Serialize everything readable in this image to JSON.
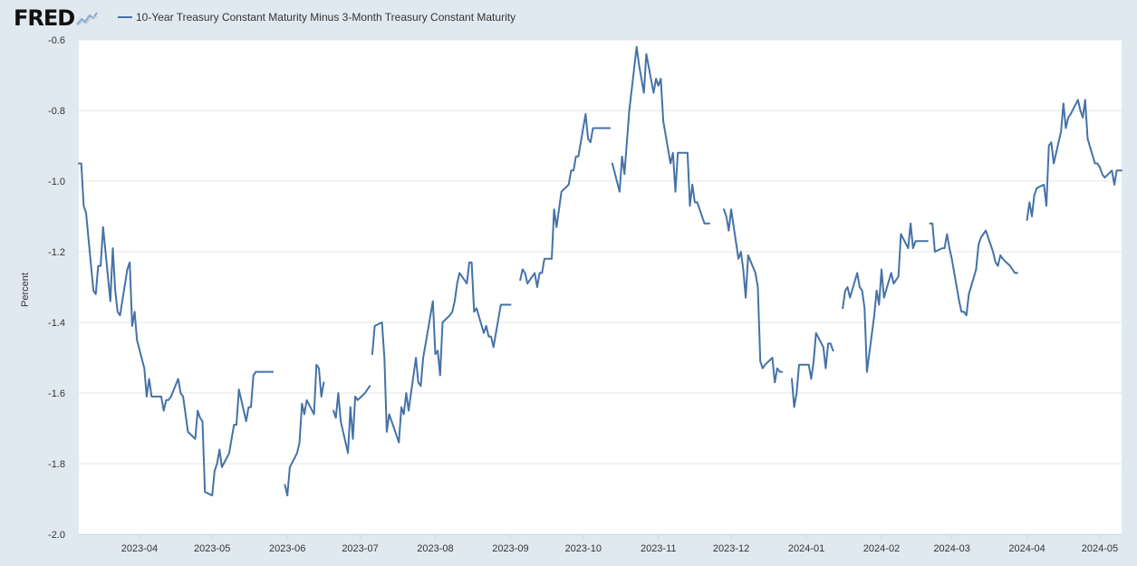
{
  "header": {
    "logo_text": "FRED",
    "legend_label": "10-Year Treasury Constant Maturity Minus 3-Month Treasury Constant Maturity"
  },
  "colors": {
    "series": "#4572a7",
    "grid": "#e6e6e6",
    "background": "#e1e9f0",
    "plot_background": "#ffffff"
  },
  "chart_data": {
    "type": "line",
    "title": "",
    "xlabel": "",
    "ylabel": "Percent",
    "ylim": [
      -2.0,
      -0.6
    ],
    "yticks": [
      "-0.6",
      "-0.8",
      "-1.0",
      "-1.2",
      "-1.4",
      "-1.6",
      "-1.8",
      "-2.0"
    ],
    "xlim": [
      "2023-03-07",
      "2024-05-10"
    ],
    "xticks": [
      "2023-04",
      "2023-05",
      "2023-06",
      "2023-07",
      "2023-08",
      "2023-09",
      "2023-10",
      "2023-11",
      "2023-12",
      "2024-01",
      "2024-02",
      "2024-03",
      "2024-04",
      "2024-05"
    ],
    "grid": true,
    "legend": "top-left",
    "series": [
      {
        "name": "10-Year Treasury Constant Maturity Minus 3-Month Treasury Constant Maturity",
        "segments": [
          {
            "x": [
              "2023-03-07",
              "2023-03-08",
              "2023-03-09",
              "2023-03-10",
              "2023-03-13",
              "2023-03-14",
              "2023-03-15",
              "2023-03-16",
              "2023-03-17",
              "2023-03-20",
              "2023-03-21",
              "2023-03-22",
              "2023-03-23",
              "2023-03-24",
              "2023-03-27",
              "2023-03-28",
              "2023-03-29",
              "2023-03-30",
              "2023-03-31",
              "2023-04-03",
              "2023-04-04",
              "2023-04-05",
              "2023-04-06",
              "2023-04-10",
              "2023-04-11",
              "2023-04-12",
              "2023-04-13",
              "2023-04-14",
              "2023-04-17",
              "2023-04-18",
              "2023-04-19",
              "2023-04-20",
              "2023-04-21",
              "2023-04-24",
              "2023-04-25",
              "2023-04-26",
              "2023-04-27",
              "2023-04-28",
              "2023-05-01",
              "2023-05-02",
              "2023-05-03",
              "2023-05-04",
              "2023-05-05",
              "2023-05-08",
              "2023-05-09",
              "2023-05-10",
              "2023-05-11",
              "2023-05-12",
              "2023-05-15",
              "2023-05-16",
              "2023-05-17",
              "2023-05-18",
              "2023-05-19",
              "2023-05-22",
              "2023-05-23",
              "2023-05-24",
              "2023-05-25",
              "2023-05-26"
            ],
            "y": [
              -0.95,
              -0.95,
              -1.07,
              -1.09,
              -1.31,
              -1.32,
              -1.24,
              -1.24,
              -1.13,
              -1.34,
              -1.19,
              -1.31,
              -1.37,
              -1.38,
              -1.25,
              -1.23,
              -1.41,
              -1.37,
              -1.45,
              -1.53,
              -1.61,
              -1.56,
              -1.61,
              -1.61,
              -1.65,
              -1.62,
              -1.62,
              -1.61,
              -1.56,
              -1.6,
              -1.61,
              -1.66,
              -1.71,
              -1.73,
              -1.65,
              -1.67,
              -1.68,
              -1.88,
              -1.89,
              -1.82,
              -1.8,
              -1.76,
              -1.81,
              -1.77,
              -1.73,
              -1.69,
              -1.69,
              -1.59,
              -1.68,
              -1.64,
              -1.64,
              -1.55,
              -1.54,
              -1.54,
              -1.54,
              -1.54,
              -1.54,
              -1.54
            ]
          },
          {
            "x": [
              "2023-05-31",
              "2023-06-01",
              "2023-06-02",
              "2023-06-05",
              "2023-06-06",
              "2023-06-07",
              "2023-06-08",
              "2023-06-09",
              "2023-06-12",
              "2023-06-13",
              "2023-06-14",
              "2023-06-15",
              "2023-06-16"
            ],
            "y": [
              -1.86,
              -1.89,
              -1.81,
              -1.77,
              -1.74,
              -1.63,
              -1.66,
              -1.62,
              -1.66,
              -1.52,
              -1.53,
              -1.61,
              -1.57
            ]
          },
          {
            "x": [
              "2023-06-20",
              "2023-06-21",
              "2023-06-22",
              "2023-06-23",
              "2023-06-26",
              "2023-06-27",
              "2023-06-28",
              "2023-06-29",
              "2023-06-30",
              "2023-07-03",
              "2023-07-05"
            ],
            "y": [
              -1.65,
              -1.67,
              -1.6,
              -1.68,
              -1.77,
              -1.64,
              -1.73,
              -1.61,
              -1.62,
              -1.6,
              -1.58
            ]
          },
          {
            "x": [
              "2023-07-06",
              "2023-07-07",
              "2023-07-10",
              "2023-07-11",
              "2023-07-12",
              "2023-07-13",
              "2023-07-14",
              "2023-07-17",
              "2023-07-18",
              "2023-07-19",
              "2023-07-20",
              "2023-07-21",
              "2023-07-24",
              "2023-07-25",
              "2023-07-26",
              "2023-07-27",
              "2023-07-28",
              "2023-07-31",
              "2023-08-01",
              "2023-08-02",
              "2023-08-03",
              "2023-08-04",
              "2023-08-07",
              "2023-08-08",
              "2023-08-09",
              "2023-08-10",
              "2023-08-11",
              "2023-08-14",
              "2023-08-15",
              "2023-08-16",
              "2023-08-17",
              "2023-08-18",
              "2023-08-21",
              "2023-08-22",
              "2023-08-23",
              "2023-08-24",
              "2023-08-25",
              "2023-08-28",
              "2023-08-29",
              "2023-08-30",
              "2023-08-31",
              "2023-09-01"
            ],
            "y": [
              -1.49,
              -1.41,
              -1.4,
              -1.5,
              -1.71,
              -1.66,
              -1.68,
              -1.74,
              -1.64,
              -1.66,
              -1.6,
              -1.65,
              -1.5,
              -1.57,
              -1.58,
              -1.5,
              -1.46,
              -1.34,
              -1.49,
              -1.48,
              -1.55,
              -1.4,
              -1.38,
              -1.37,
              -1.34,
              -1.29,
              -1.26,
              -1.29,
              -1.23,
              -1.23,
              -1.37,
              -1.36,
              -1.43,
              -1.41,
              -1.44,
              -1.44,
              -1.47,
              -1.35,
              -1.35,
              -1.35,
              -1.35,
              -1.35
            ]
          },
          {
            "x": [
              "2023-09-05",
              "2023-09-06",
              "2023-09-07",
              "2023-09-08",
              "2023-09-11",
              "2023-09-12",
              "2023-09-13",
              "2023-09-14",
              "2023-09-15",
              "2023-09-18",
              "2023-09-19",
              "2023-09-20",
              "2023-09-21",
              "2023-09-22",
              "2023-09-25",
              "2023-09-26",
              "2023-09-27",
              "2023-09-28",
              "2023-09-29",
              "2023-10-02",
              "2023-10-03",
              "2023-10-04",
              "2023-10-05",
              "2023-10-06",
              "2023-10-09",
              "2023-10-10",
              "2023-10-11",
              "2023-10-12"
            ],
            "y": [
              -1.28,
              -1.25,
              -1.26,
              -1.29,
              -1.26,
              -1.3,
              -1.26,
              -1.26,
              -1.22,
              -1.22,
              -1.08,
              -1.13,
              -1.08,
              -1.03,
              -1.01,
              -0.97,
              -0.97,
              -0.93,
              -0.93,
              -0.81,
              -0.88,
              -0.89,
              -0.85,
              -0.85,
              -0.85,
              -0.85,
              -0.85,
              -0.85
            ]
          },
          {
            "x": [
              "2023-10-13",
              "2023-10-16",
              "2023-10-17",
              "2023-10-18",
              "2023-10-19",
              "2023-10-20",
              "2023-10-23",
              "2023-10-24",
              "2023-10-25",
              "2023-10-26",
              "2023-10-27",
              "2023-10-30",
              "2023-10-31",
              "2023-11-01",
              "2023-11-02",
              "2023-11-03",
              "2023-11-06",
              "2023-11-07",
              "2023-11-08",
              "2023-11-09",
              "2023-11-10",
              "2023-11-13",
              "2023-11-14",
              "2023-11-15",
              "2023-11-16",
              "2023-11-17",
              "2023-11-20",
              "2023-11-21",
              "2023-11-22"
            ],
            "y": [
              -0.95,
              -1.03,
              -0.93,
              -0.98,
              -0.89,
              -0.8,
              -0.62,
              -0.67,
              -0.71,
              -0.75,
              -0.64,
              -0.75,
              -0.71,
              -0.73,
              -0.71,
              -0.83,
              -0.95,
              -0.92,
              -1.03,
              -0.92,
              -0.92,
              -0.92,
              -1.07,
              -1.01,
              -1.06,
              -1.06,
              -1.12,
              -1.12,
              -1.12
            ]
          },
          {
            "x": [
              "2023-11-28",
              "2023-11-29",
              "2023-11-30",
              "2023-12-01",
              "2023-12-04",
              "2023-12-05",
              "2023-12-06",
              "2023-12-07",
              "2023-12-08",
              "2023-12-11",
              "2023-12-12",
              "2023-12-13",
              "2023-12-14",
              "2023-12-15",
              "2023-12-18",
              "2023-12-19",
              "2023-12-20",
              "2023-12-21",
              "2023-12-22"
            ],
            "y": [
              -1.08,
              -1.1,
              -1.14,
              -1.08,
              -1.22,
              -1.2,
              -1.25,
              -1.33,
              -1.21,
              -1.26,
              -1.3,
              -1.51,
              -1.53,
              -1.52,
              -1.5,
              -1.57,
              -1.53,
              -1.54,
              -1.54
            ]
          },
          {
            "x": [
              "2023-12-26",
              "2023-12-27",
              "2023-12-28",
              "2023-12-29",
              "2024-01-02",
              "2024-01-03",
              "2024-01-04",
              "2024-01-05",
              "2024-01-08",
              "2024-01-09",
              "2024-01-10",
              "2024-01-11",
              "2024-01-12"
            ],
            "y": [
              -1.56,
              -1.64,
              -1.6,
              -1.52,
              -1.52,
              -1.56,
              -1.51,
              -1.43,
              -1.47,
              -1.53,
              -1.46,
              -1.46,
              -1.48
            ]
          },
          {
            "x": [
              "2024-01-16",
              "2024-01-17",
              "2024-01-18",
              "2024-01-19",
              "2024-01-22",
              "2024-01-23",
              "2024-01-24",
              "2024-01-25",
              "2024-01-26",
              "2024-01-29",
              "2024-01-30",
              "2024-01-31",
              "2024-02-01",
              "2024-02-02",
              "2024-02-05",
              "2024-02-06",
              "2024-02-07",
              "2024-02-08",
              "2024-02-09",
              "2024-02-12",
              "2024-02-13",
              "2024-02-14",
              "2024-02-15",
              "2024-02-16",
              "2024-02-20"
            ],
            "y": [
              -1.36,
              -1.31,
              -1.3,
              -1.33,
              -1.26,
              -1.3,
              -1.31,
              -1.36,
              -1.54,
              -1.38,
              -1.31,
              -1.35,
              -1.25,
              -1.33,
              -1.26,
              -1.29,
              -1.28,
              -1.27,
              -1.15,
              -1.19,
              -1.12,
              -1.19,
              -1.17,
              -1.17,
              -1.17
            ]
          },
          {
            "x": [
              "2024-02-21",
              "2024-02-22",
              "2024-02-23",
              "2024-02-26",
              "2024-02-27",
              "2024-02-28",
              "2024-02-29",
              "2024-03-01",
              "2024-03-04",
              "2024-03-05",
              "2024-03-06",
              "2024-03-07",
              "2024-03-08",
              "2024-03-11",
              "2024-03-12",
              "2024-03-13",
              "2024-03-14",
              "2024-03-15",
              "2024-03-18",
              "2024-03-19",
              "2024-03-20",
              "2024-03-21",
              "2024-03-22",
              "2024-03-25",
              "2024-03-26",
              "2024-03-27",
              "2024-03-28"
            ],
            "y": [
              -1.12,
              -1.12,
              -1.2,
              -1.19,
              -1.19,
              -1.15,
              -1.19,
              -1.22,
              -1.34,
              -1.37,
              -1.37,
              -1.38,
              -1.32,
              -1.25,
              -1.18,
              -1.16,
              -1.15,
              -1.14,
              -1.2,
              -1.23,
              -1.24,
              -1.21,
              -1.22,
              -1.24,
              -1.25,
              -1.26,
              -1.26
            ]
          },
          {
            "x": [
              "2024-04-01",
              "2024-04-02",
              "2024-04-03",
              "2024-04-04",
              "2024-04-05",
              "2024-04-08",
              "2024-04-09",
              "2024-04-10",
              "2024-04-11",
              "2024-04-12",
              "2024-04-15",
              "2024-04-16",
              "2024-04-17",
              "2024-04-18",
              "2024-04-19",
              "2024-04-22",
              "2024-04-23",
              "2024-04-24",
              "2024-04-25",
              "2024-04-26",
              "2024-04-29",
              "2024-04-30",
              "2024-05-01",
              "2024-05-02",
              "2024-05-03",
              "2024-05-06",
              "2024-05-07",
              "2024-05-08",
              "2024-05-09",
              "2024-05-10"
            ],
            "y": [
              -1.11,
              -1.06,
              -1.1,
              -1.04,
              -1.02,
              -1.01,
              -1.07,
              -0.9,
              -0.89,
              -0.95,
              -0.86,
              -0.78,
              -0.85,
              -0.82,
              -0.81,
              -0.77,
              -0.8,
              -0.82,
              -0.77,
              -0.88,
              -0.95,
              -0.95,
              -0.96,
              -0.98,
              -0.99,
              -0.97,
              -1.01,
              -0.97,
              -0.97,
              -0.97
            ]
          }
        ]
      }
    ]
  }
}
